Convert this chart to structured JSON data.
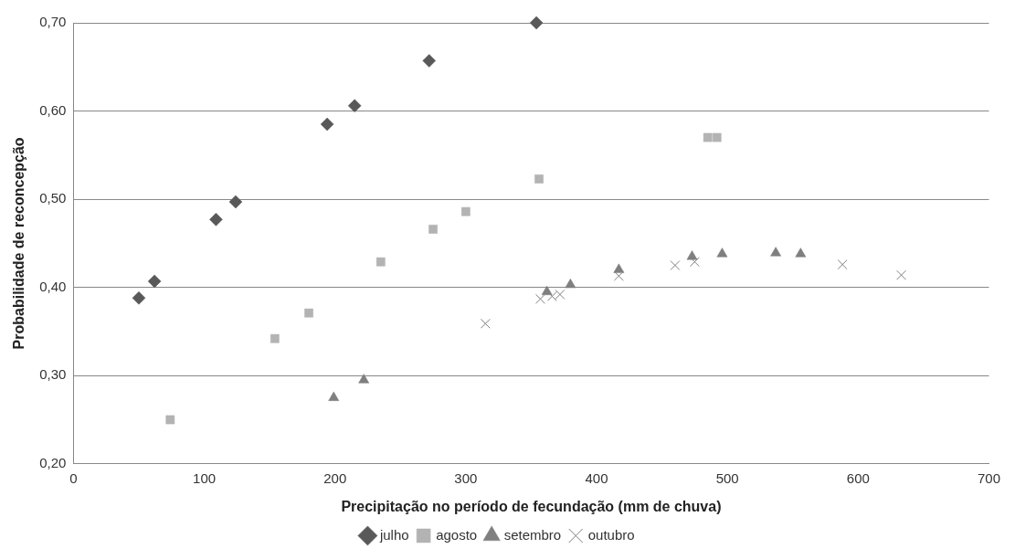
{
  "chart_data": {
    "type": "scatter",
    "xlabel": "Precipitação no período de fecundação (mm de chuva)",
    "ylabel": "Probabilidade de reconcepção",
    "xlim": [
      0,
      700
    ],
    "xticks": [
      0,
      100,
      200,
      300,
      400,
      500,
      600,
      700
    ],
    "ylim": [
      0.2,
      0.7
    ],
    "yticks": [
      {
        "value": 0.2,
        "label": "0,20"
      },
      {
        "value": 0.3,
        "label": "0,30"
      },
      {
        "value": 0.4,
        "label": "0,40"
      },
      {
        "value": 0.5,
        "label": "0,50"
      },
      {
        "value": 0.6,
        "label": "0,60"
      },
      {
        "value": 0.7,
        "label": "0,70"
      }
    ],
    "grid": "y",
    "legend": "bottom",
    "series": [
      {
        "name": "julho",
        "color": "#595959",
        "marker": "diamond",
        "x": [
          50,
          62,
          109,
          124,
          194,
          215,
          272,
          354
        ],
        "values": [
          0.388,
          0.407,
          0.477,
          0.497,
          0.585,
          0.606,
          0.657,
          0.7
        ]
      },
      {
        "name": "agosto",
        "color": "#b3b3b3",
        "marker": "square",
        "x": [
          74,
          154,
          180,
          235,
          275,
          300,
          356,
          485,
          492
        ],
        "values": [
          0.25,
          0.342,
          0.371,
          0.429,
          0.466,
          0.486,
          0.523,
          0.57,
          0.57
        ]
      },
      {
        "name": "setembro",
        "color": "#7f7f7f",
        "marker": "triangle",
        "x": [
          199,
          222,
          362,
          380,
          417,
          473,
          496,
          537,
          556
        ],
        "values": [
          0.275,
          0.295,
          0.395,
          0.403,
          0.42,
          0.435,
          0.438,
          0.439,
          0.438
        ]
      },
      {
        "name": "outubro",
        "color": "#7f7f7f",
        "marker": "cross",
        "x": [
          315,
          357,
          366,
          372,
          417,
          460,
          475,
          588,
          633
        ],
        "values": [
          0.359,
          0.387,
          0.39,
          0.392,
          0.413,
          0.425,
          0.429,
          0.426,
          0.414
        ]
      }
    ]
  }
}
